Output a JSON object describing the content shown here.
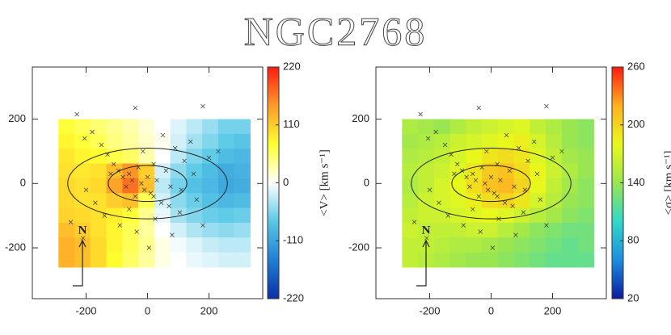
{
  "title": "NGC2768",
  "chart_data": [
    {
      "type": "heatmap",
      "xlim": [
        -375,
        375
      ],
      "ylim": [
        -358,
        362
      ],
      "xticks": [
        -200,
        0,
        200
      ],
      "yticks": [
        -200,
        0,
        200
      ],
      "x_edges": [
        -290,
        -238,
        -186,
        -134,
        -82,
        -30,
        22,
        74,
        126,
        178,
        230,
        282,
        334
      ],
      "y_edges": [
        200,
        154,
        108,
        62,
        16,
        -30,
        -76,
        -122,
        -168,
        -214,
        -260
      ],
      "z": [
        [
          70,
          60,
          50,
          40,
          30,
          15,
          0,
          -15,
          -30,
          -45,
          -60,
          -60
        ],
        [
          80,
          70,
          60,
          45,
          35,
          20,
          5,
          -20,
          -40,
          -55,
          -70,
          -75
        ],
        [
          90,
          80,
          75,
          65,
          55,
          30,
          0,
          -30,
          -55,
          -70,
          -85,
          -90
        ],
        [
          95,
          90,
          95,
          120,
          150,
          110,
          -20,
          -50,
          -70,
          -85,
          -100,
          -95
        ],
        [
          100,
          95,
          100,
          140,
          170,
          120,
          -30,
          -60,
          -80,
          -90,
          -105,
          -100
        ],
        [
          100,
          95,
          95,
          110,
          120,
          60,
          -20,
          -50,
          -65,
          -80,
          -90,
          -85
        ],
        [
          105,
          100,
          95,
          85,
          70,
          40,
          -10,
          -40,
          -55,
          -65,
          -70,
          -65
        ],
        [
          120,
          110,
          95,
          80,
          60,
          35,
          0,
          -20,
          -35,
          -45,
          -50,
          -45
        ],
        [
          130,
          120,
          100,
          80,
          60,
          40,
          10,
          -5,
          -15,
          -25,
          -30,
          -30
        ],
        [
          130,
          120,
          100,
          75,
          55,
          35,
          10,
          0,
          -10,
          -15,
          -20,
          -20
        ]
      ],
      "clim": [
        -220,
        220
      ],
      "colormap": [
        "#0a2fa8",
        "#1f7fd4",
        "#58c8e6",
        "#ffffff",
        "#ffff30",
        "#ff9a28",
        "#ff1a10"
      ],
      "colorbar_ticks": [
        -220,
        -110,
        0,
        110,
        220
      ],
      "colorbar_label": "<V> [km s⁻¹]",
      "ellipses": [
        {
          "a": 260,
          "b": 110
        },
        {
          "a": 128,
          "b": 56
        }
      ],
      "north_label": "N",
      "points": {
        "x": [
          -230,
          -205,
          -180,
          -150,
          -130,
          -110,
          -95,
          -80,
          -70,
          -60,
          -50,
          -40,
          -30,
          -20,
          -10,
          0,
          10,
          20,
          30,
          45,
          60,
          75,
          90,
          105,
          120,
          140,
          160,
          180,
          200,
          230,
          -250,
          -210,
          -170,
          -140,
          -120,
          -90,
          -60,
          -35,
          -15,
          5,
          25,
          50,
          80,
          110,
          150,
          -40,
          70,
          20,
          180,
          -200
        ],
        "y": [
          215,
          140,
          160,
          120,
          90,
          60,
          40,
          20,
          -10,
          30,
          10,
          -40,
          50,
          0,
          -20,
          20,
          -30,
          60,
          10,
          -60,
          40,
          -10,
          110,
          -90,
          70,
          130,
          -50,
          240,
          80,
          100,
          -120,
          -170,
          -60,
          -100,
          30,
          -130,
          -80,
          -150,
          100,
          -200,
          -110,
          150,
          -160,
          -20,
          30,
          235,
          -70,
          -40,
          -130,
          -20
        ]
      }
    },
    {
      "type": "heatmap",
      "xlim": [
        -375,
        375
      ],
      "ylim": [
        -358,
        362
      ],
      "xticks": [
        -200,
        0,
        200
      ],
      "yticks": [
        -200,
        0,
        200
      ],
      "x_edges": [
        -290,
        -238,
        -186,
        -134,
        -82,
        -30,
        22,
        74,
        126,
        178,
        230,
        282,
        334
      ],
      "y_edges": [
        200,
        154,
        108,
        62,
        16,
        -30,
        -76,
        -122,
        -168,
        -214,
        -260
      ],
      "z": [
        [
          150,
          145,
          140,
          150,
          160,
          165,
          170,
          175,
          160,
          150,
          140,
          135
        ],
        [
          145,
          150,
          155,
          165,
          170,
          175,
          180,
          185,
          170,
          155,
          140,
          135
        ],
        [
          150,
          155,
          160,
          170,
          180,
          190,
          195,
          190,
          175,
          160,
          145,
          140
        ],
        [
          155,
          160,
          165,
          175,
          190,
          205,
          210,
          195,
          180,
          165,
          150,
          140
        ],
        [
          150,
          160,
          170,
          180,
          195,
          210,
          215,
          200,
          180,
          160,
          145,
          135
        ],
        [
          155,
          165,
          170,
          175,
          185,
          195,
          200,
          190,
          170,
          155,
          140,
          135
        ],
        [
          160,
          165,
          165,
          170,
          175,
          180,
          175,
          165,
          155,
          145,
          135,
          130
        ],
        [
          165,
          160,
          160,
          160,
          165,
          165,
          155,
          145,
          135,
          130,
          125,
          125
        ],
        [
          160,
          160,
          155,
          150,
          150,
          145,
          140,
          135,
          130,
          125,
          120,
          125
        ],
        [
          160,
          155,
          150,
          145,
          140,
          140,
          135,
          130,
          125,
          120,
          120,
          120
        ]
      ],
      "clim": [
        20,
        260
      ],
      "colormap": [
        "#0a1aa0",
        "#1c8ee0",
        "#30d8c8",
        "#9ae650",
        "#e8f81c",
        "#ffb020",
        "#ff1a10"
      ],
      "colorbar_ticks": [
        20,
        80,
        140,
        200,
        260
      ],
      "colorbar_label": "<σ> [km s⁻¹]",
      "ellipses": [
        {
          "a": 260,
          "b": 110
        },
        {
          "a": 128,
          "b": 56
        }
      ],
      "north_label": "N",
      "points": {
        "x": [
          -230,
          -205,
          -180,
          -150,
          -130,
          -110,
          -95,
          -80,
          -70,
          -60,
          -50,
          -40,
          -30,
          -20,
          -10,
          0,
          10,
          20,
          30,
          45,
          60,
          75,
          90,
          105,
          120,
          140,
          160,
          180,
          200,
          230,
          -250,
          -210,
          -170,
          -140,
          -120,
          -90,
          -60,
          -35,
          -15,
          5,
          25,
          50,
          80,
          110,
          150,
          -40,
          70,
          20,
          180,
          -200
        ],
        "y": [
          215,
          140,
          160,
          120,
          90,
          60,
          40,
          20,
          -10,
          30,
          10,
          -40,
          50,
          0,
          -20,
          20,
          -30,
          60,
          10,
          -60,
          40,
          -10,
          110,
          -90,
          70,
          130,
          -50,
          240,
          80,
          100,
          -120,
          -170,
          -60,
          -100,
          30,
          -130,
          -80,
          -150,
          100,
          -200,
          -110,
          150,
          -160,
          -20,
          30,
          235,
          -70,
          -40,
          -130,
          -20
        ]
      }
    }
  ]
}
